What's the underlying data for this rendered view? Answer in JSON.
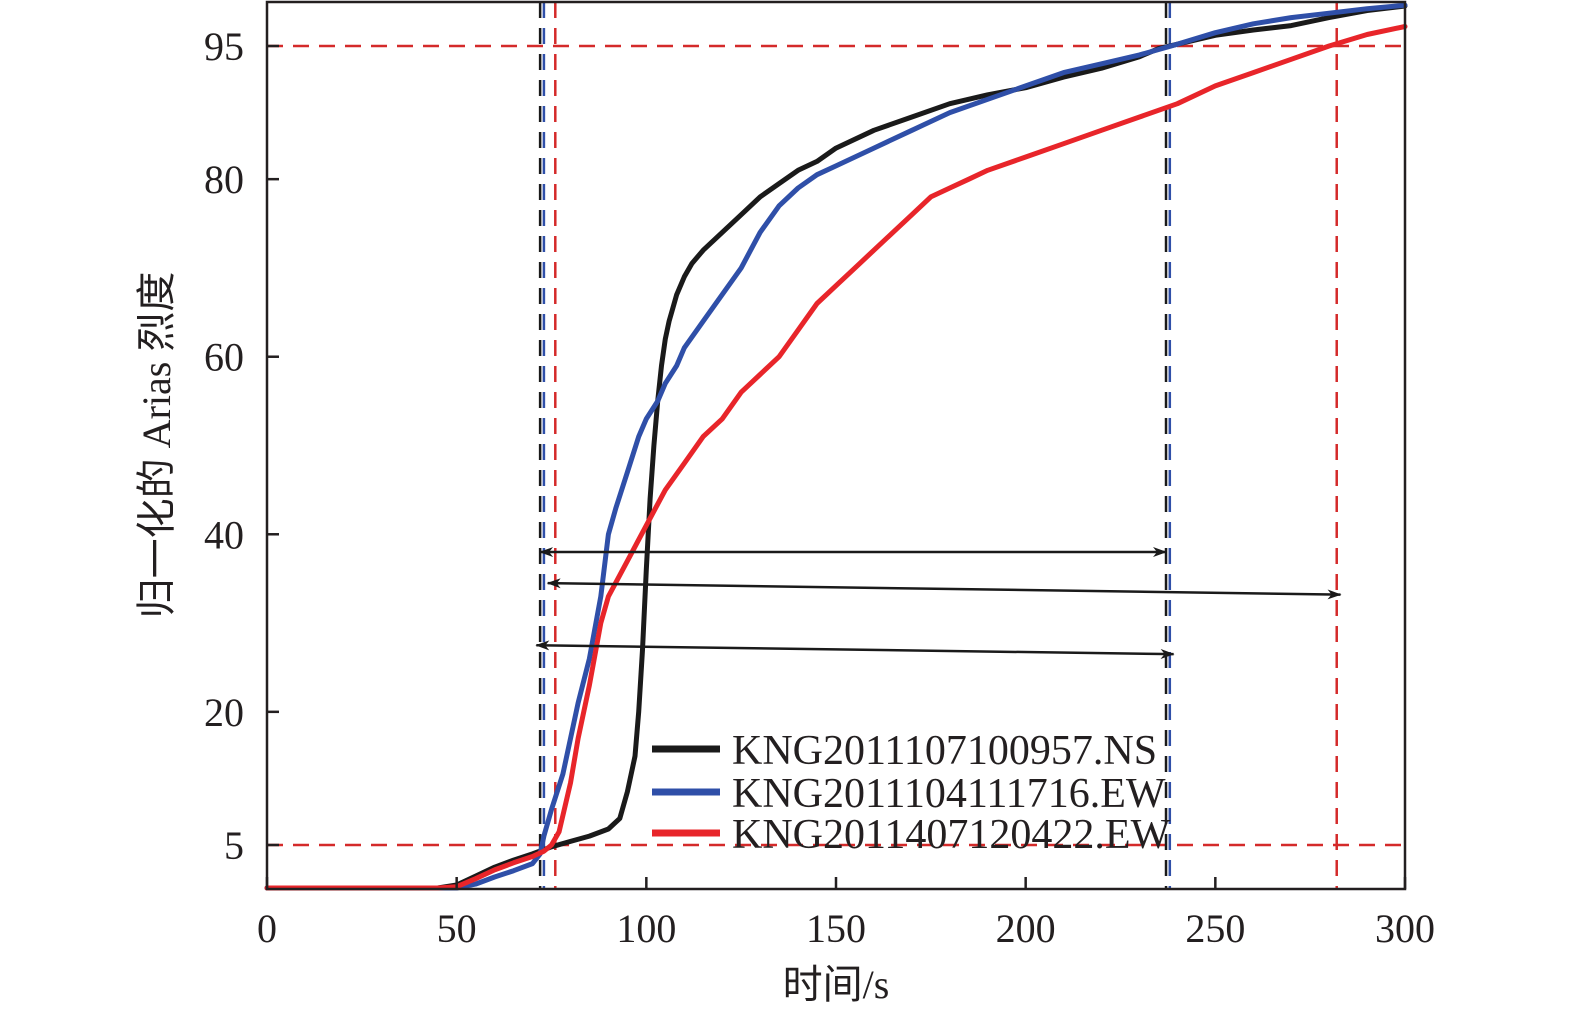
{
  "chart_data": {
    "type": "line",
    "title": "",
    "xlabel": "时间/s",
    "ylabel": "归一化的 Arias 烈度",
    "xlim": [
      0,
      300
    ],
    "ylim": [
      0,
      100
    ],
    "xticks": [
      0,
      50,
      100,
      150,
      200,
      250,
      300
    ],
    "xtick_labels": [
      "0",
      "50",
      "100",
      "150",
      "200",
      "250",
      "300"
    ],
    "yticks": [
      5,
      20,
      40,
      60,
      80,
      95
    ],
    "ytick_labels": [
      "5",
      "20",
      "40",
      "60",
      "80",
      "95"
    ],
    "grid": false,
    "legend_position": "lower-right",
    "series": [
      {
        "name": "KNG2011107100957.NS",
        "color": "#1a1a1a",
        "x": [
          0,
          45,
          50,
          55,
          60,
          65,
          70,
          75,
          80,
          85,
          90,
          93,
          95,
          97,
          98,
          99,
          100,
          101,
          102,
          103,
          104,
          105,
          106,
          107,
          108,
          110,
          112,
          115,
          120,
          125,
          130,
          135,
          140,
          145,
          150,
          160,
          170,
          180,
          190,
          200,
          210,
          220,
          230,
          235,
          240,
          250,
          260,
          270,
          280,
          290,
          300
        ],
        "y": [
          0,
          0,
          0.5,
          1.5,
          2.5,
          3.3,
          4.0,
          4.8,
          5.4,
          6.0,
          6.8,
          8,
          11,
          15,
          20,
          27,
          36,
          44,
          50,
          55,
          59,
          62,
          64,
          65.5,
          67,
          69,
          70.5,
          72,
          74,
          76,
          78,
          79.5,
          81,
          82,
          83.5,
          85.5,
          87,
          88.5,
          89.5,
          90.3,
          91.5,
          92.5,
          93.8,
          94.7,
          95.2,
          96.2,
          96.8,
          97.3,
          98.2,
          99,
          99.5
        ]
      },
      {
        "name": "KNG2011104111716.EW",
        "color": "#2f4fa8",
        "x": [
          0,
          45,
          50,
          55,
          60,
          65,
          70,
          72,
          73,
          75,
          78,
          80,
          82,
          85,
          88,
          90,
          92,
          95,
          98,
          100,
          103,
          105,
          108,
          110,
          115,
          120,
          125,
          130,
          135,
          140,
          145,
          150,
          160,
          170,
          180,
          190,
          200,
          210,
          220,
          230,
          240,
          250,
          260,
          270,
          280,
          290,
          300
        ],
        "y": [
          0,
          0,
          0,
          0.6,
          1.4,
          2.1,
          2.9,
          4.0,
          6,
          9,
          13,
          17,
          21,
          26,
          33,
          40,
          43,
          47,
          51,
          53,
          55,
          57,
          59,
          61,
          64,
          67,
          70,
          74,
          77,
          79,
          80.5,
          81.5,
          83.5,
          85.5,
          87.5,
          89,
          90.5,
          92,
          93,
          94,
          95.2,
          96.5,
          97.5,
          98.2,
          98.7,
          99.2,
          99.6
        ]
      },
      {
        "name": "KNG2011407120422.EW",
        "color": "#e8252a",
        "x": [
          0,
          45,
          50,
          55,
          60,
          65,
          70,
          73,
          75,
          77,
          80,
          82,
          85,
          88,
          90,
          95,
          100,
          105,
          110,
          115,
          120,
          125,
          130,
          135,
          140,
          145,
          150,
          155,
          160,
          165,
          170,
          175,
          180,
          185,
          190,
          200,
          210,
          220,
          230,
          240,
          250,
          260,
          270,
          280,
          290,
          300
        ],
        "y": [
          0,
          0,
          0.3,
          1.2,
          2.2,
          3.0,
          3.7,
          4.3,
          5.0,
          6.5,
          12,
          17,
          23,
          30,
          33,
          37,
          41,
          45,
          48,
          51,
          53,
          56,
          58,
          60,
          63,
          66,
          68,
          70,
          72,
          74,
          76,
          78,
          79,
          80,
          81,
          82.5,
          84,
          85.5,
          87,
          88.5,
          90.5,
          92,
          93.5,
          95,
          96.3,
          97.2
        ]
      }
    ],
    "reference_lines": {
      "color": "#d42a2a",
      "horizontal_y": [
        5,
        95
      ],
      "vertical_x": [
        {
          "x": 72,
          "color": "#1a1a1a"
        },
        {
          "x": 73,
          "color": "#2f4fa8"
        },
        {
          "x": 76,
          "color": "#d42a2a"
        },
        {
          "x": 237,
          "color": "#1a1a1a"
        },
        {
          "x": 238,
          "color": "#2f4fa8"
        },
        {
          "x": 282,
          "color": "#d42a2a"
        }
      ]
    },
    "duration_arrows": [
      {
        "x1": 72,
        "y1": 38,
        "x2": 237,
        "y2": 38
      },
      {
        "x1": 74,
        "y1": 34.5,
        "x2": 283,
        "y2": 33.2
      },
      {
        "x1": 71,
        "y1": 27.5,
        "x2": 239,
        "y2": 26.5
      }
    ]
  }
}
